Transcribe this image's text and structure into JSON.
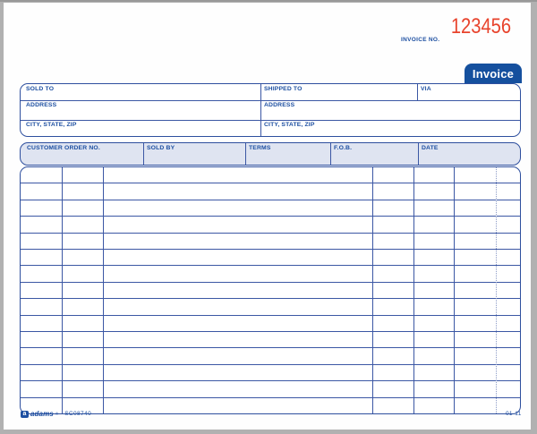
{
  "document": {
    "type_label": "Invoice",
    "invoice_no_label": "INVOICE NO.",
    "invoice_number": "123456"
  },
  "address_block": {
    "sold_to": "SOLD TO",
    "shipped_to": "SHIPPED TO",
    "via": "VIA",
    "address_left": "ADDRESS",
    "address_right": "ADDRESS",
    "city_state_zip_left": "CITY, STATE, ZIP",
    "city_state_zip_right": "CITY, STATE, ZIP"
  },
  "order_info": {
    "customer_order_no": "CUSTOMER ORDER NO.",
    "sold_by": "SOLD BY",
    "terms": "TERMS",
    "fob": "F.O.B.",
    "date": "DATE"
  },
  "line_items_table": {
    "row_count": 15
  },
  "footer": {
    "logo_letter": "a",
    "brand": "adams",
    "registered_mark": "®",
    "product_code": "SC08740",
    "revision_code": "01-11"
  },
  "colors": {
    "form_blue": "#2e4f9e",
    "label_blue": "#1d4fa1",
    "badge_blue": "#15509e",
    "stamp_red": "#e8432c",
    "shaded_row_fill": "#dfe4f1"
  }
}
